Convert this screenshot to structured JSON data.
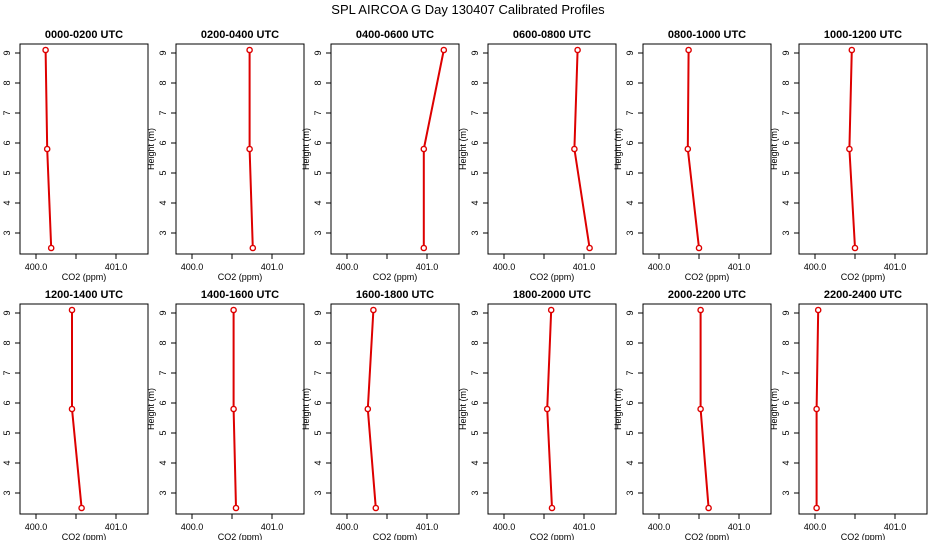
{
  "title": "SPL AIRCOA G  Day 130407  Calibrated Profiles",
  "chart_data": {
    "type": "line",
    "xlabel": "CO2 (ppm)",
    "ylabel": "Height (m)",
    "xlim": [
      399.8,
      401.4
    ],
    "ylim": [
      2.3,
      9.3
    ],
    "x_ticks": [
      "400.0",
      "401.0"
    ],
    "y_ticks": [
      "3",
      "4",
      "5",
      "6",
      "7",
      "8",
      "9"
    ],
    "y_values": [
      9.1,
      5.8,
      2.5
    ],
    "line_color": "#dd0000",
    "panels": [
      {
        "title": "0000-0200 UTC",
        "x": [
          400.12,
          400.14,
          400.19
        ]
      },
      {
        "title": "0200-0400 UTC",
        "x": [
          400.72,
          400.72,
          400.76
        ]
      },
      {
        "title": "0400-0600 UTC",
        "x": [
          401.21,
          400.96,
          400.96
        ]
      },
      {
        "title": "0600-0800 UTC",
        "x": [
          400.92,
          400.88,
          401.07
        ]
      },
      {
        "title": "0800-1000 UTC",
        "x": [
          400.37,
          400.36,
          400.5
        ]
      },
      {
        "title": "1000-1200 UTC",
        "x": [
          400.46,
          400.43,
          400.5
        ]
      },
      {
        "title": "1200-1400 UTC",
        "x": [
          400.45,
          400.45,
          400.57
        ]
      },
      {
        "title": "1400-1600 UTC",
        "x": [
          400.52,
          400.52,
          400.55
        ]
      },
      {
        "title": "1600-1800 UTC",
        "x": [
          400.33,
          400.26,
          400.36
        ]
      },
      {
        "title": "1800-2000 UTC",
        "x": [
          400.59,
          400.54,
          400.6
        ]
      },
      {
        "title": "2000-2200 UTC",
        "x": [
          400.52,
          400.52,
          400.62
        ]
      },
      {
        "title": "2200-2400 UTC",
        "x": [
          400.04,
          400.02,
          400.02
        ]
      }
    ]
  }
}
